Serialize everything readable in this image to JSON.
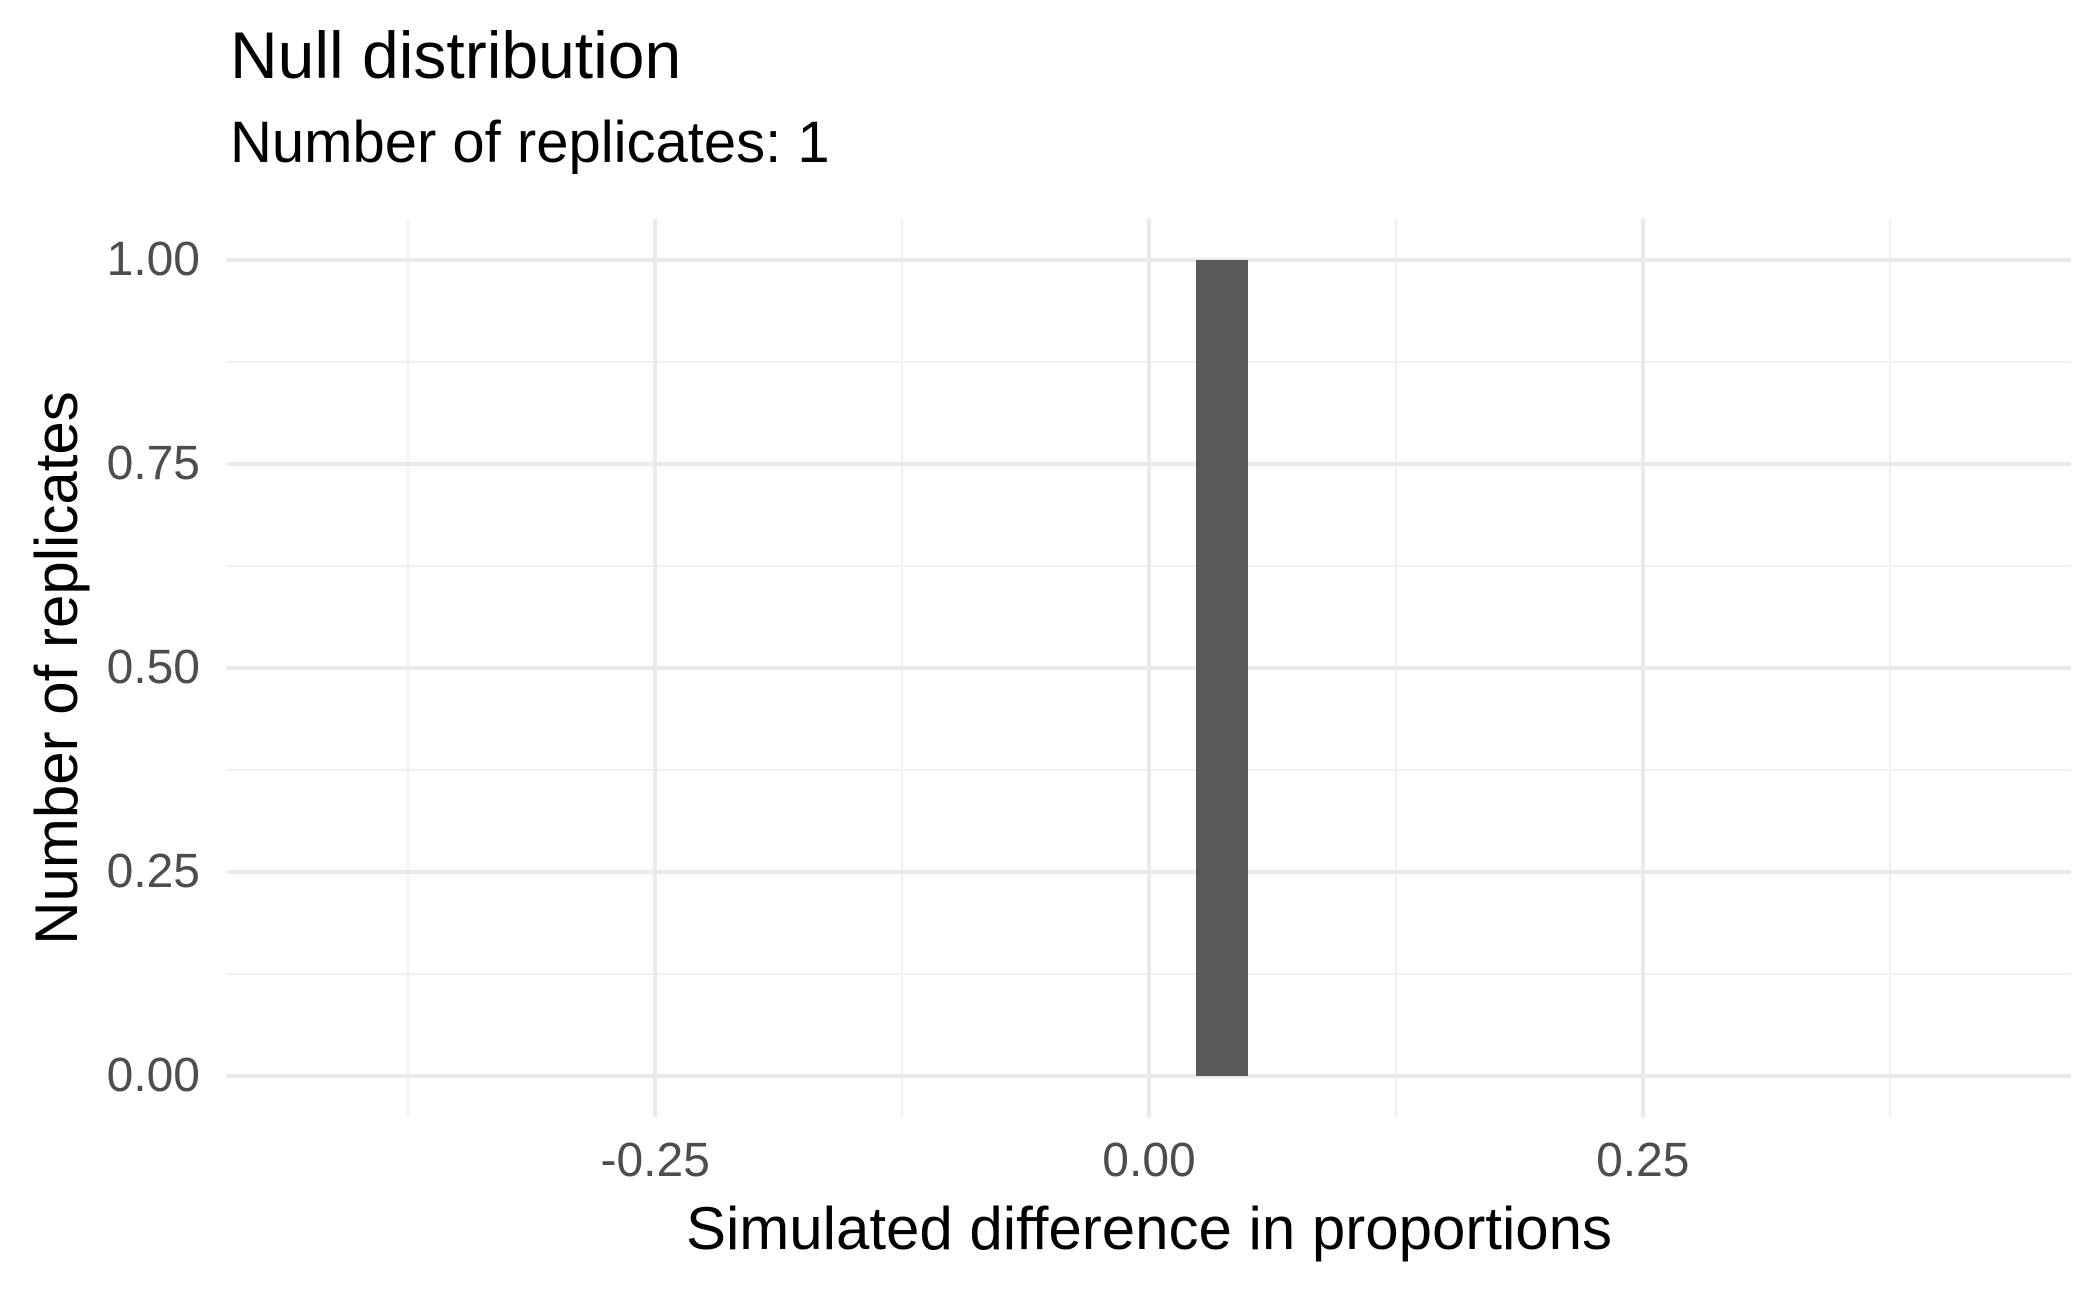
{
  "title": "Null distribution",
  "subtitle": "Number of replicates: 1",
  "axes": {
    "x_title": "Simulated difference in proportions",
    "y_title": "Number of replicates"
  },
  "colors": {
    "bar_fill": "#595959",
    "tick_label": "#4d4d4d",
    "grid_major": "#eaeaea",
    "grid_minor": "#f0f0f0",
    "background": "#ffffff",
    "text": "#000000"
  },
  "chart_data": {
    "type": "bar",
    "subtype": "histogram",
    "title": "Null distribution",
    "subtitle": "Number of replicates: 1",
    "xlabel": "Simulated difference in proportions",
    "ylabel": "Number of replicates",
    "bars": [
      {
        "x_left": 0.024,
        "x_right": 0.05,
        "count": 1
      }
    ],
    "x_ticks": [
      -0.25,
      0,
      0.25
    ],
    "x_tick_labels": [
      "-0.25",
      "0.00",
      "0.25"
    ],
    "x_minor_breaks": [
      -0.375,
      -0.125,
      0.125,
      0.375
    ],
    "y_ticks": [
      0,
      0.25,
      0.5,
      0.75,
      1
    ],
    "y_tick_labels": [
      "0.00",
      "0.25",
      "0.50",
      "0.75",
      "1.00"
    ],
    "y_minor_breaks": [
      0.125,
      0.375,
      0.625,
      0.875
    ],
    "xlim": [
      -0.4668,
      0.4668
    ],
    "ylim": [
      -0.05,
      1.05
    ],
    "grid": true,
    "legend": "none"
  }
}
